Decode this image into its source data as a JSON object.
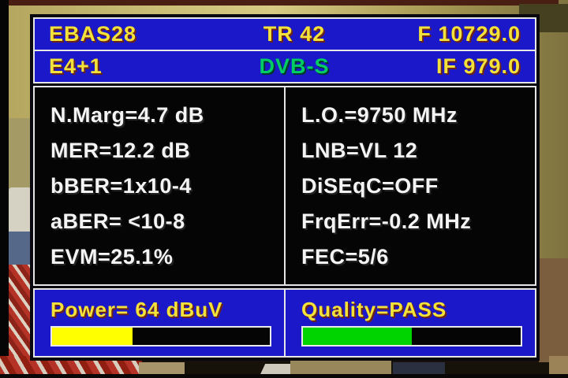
{
  "colors": {
    "blue": "#1a18c9",
    "yellow_text": "#f2e23a",
    "green_text": "#00cc66",
    "white_text": "#f4f4f4"
  },
  "header": {
    "row1": {
      "station": "EBAS28",
      "transponder": "TR 42",
      "frequency": "F 10729.0"
    },
    "row2": {
      "channel": "E4+1",
      "standard": "DVB-S",
      "if_frequency": "IF 979.0"
    }
  },
  "readings": {
    "left": [
      "N.Marg=4.7 dB",
      "MER=12.2 dB",
      "bBER=1x10-4",
      "aBER= <10-8",
      "EVM=25.1%"
    ],
    "right": [
      "L.O.=9750 MHz",
      "LNB=VL 12",
      "DiSEqC=OFF",
      "FrqErr=-0.2 MHz",
      "FEC=5/6"
    ]
  },
  "meters": {
    "power": {
      "label": "Power= 64 dBuV",
      "percent": 37,
      "fill_color": "#ffff00"
    },
    "quality": {
      "label": "Quality=PASS",
      "percent": 50,
      "fill_color": "#00d400"
    }
  }
}
